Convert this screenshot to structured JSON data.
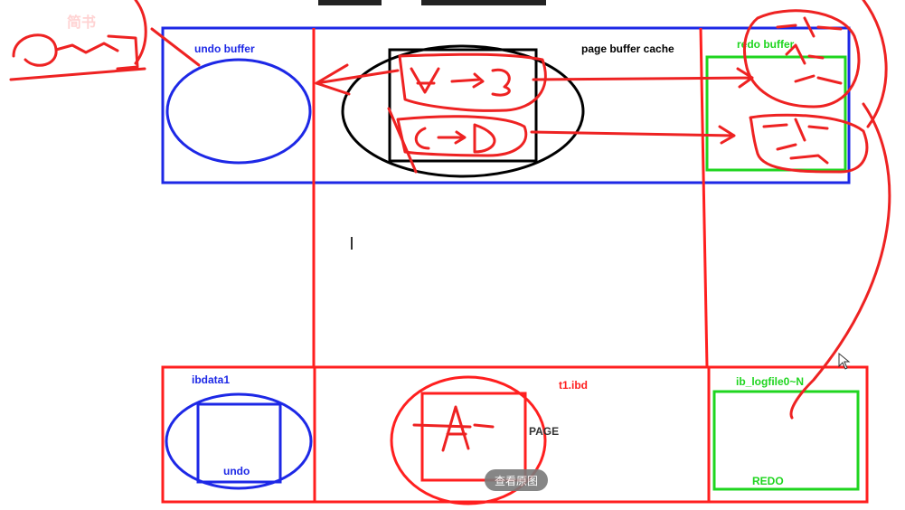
{
  "header": {
    "left_text": "简书",
    "top_text_partial": ""
  },
  "labels": {
    "undo_buffer": "undo buffer",
    "page_buffer_cache": "page buffer cache",
    "redo_buffer": "redo buffer",
    "ibdata1": "ibdata1",
    "undo": "undo",
    "t1_ibd": "t1.ibd",
    "page": "PAGE",
    "ib_logfile": "ib_logfile0~N",
    "redo": "REDO"
  },
  "overlay_button": {
    "label": "查看原图"
  },
  "colors": {
    "blue": "#1d28e6",
    "red": "#ff1f1f",
    "green": "#1fd51f",
    "black": "#000000",
    "annotation_red": "#ee2222"
  },
  "cursor": {
    "icon": "mouse-pointer-icon"
  }
}
